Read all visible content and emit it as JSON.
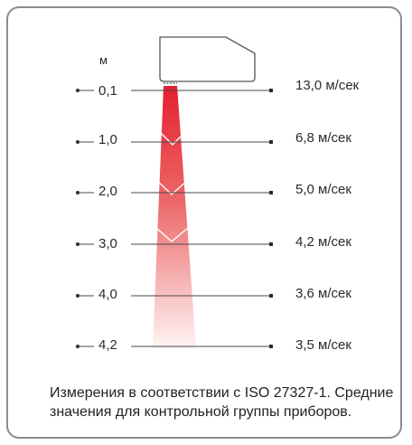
{
  "unit_label": "м",
  "rows": [
    {
      "distance": "0,1",
      "velocity": "13,0 м/сек"
    },
    {
      "distance": "1,0",
      "velocity": "6,8 м/сек"
    },
    {
      "distance": "2,0",
      "velocity": "5,0 м/сек"
    },
    {
      "distance": "3,0",
      "velocity": "4,2 м/сек"
    },
    {
      "distance": "4,0",
      "velocity": "3,6 м/сек"
    },
    {
      "distance": "4,2",
      "velocity": "3,5 м/сек"
    }
  ],
  "caption": "Измерения в соответствии с ISO 27327-1. Средние значения для контрольной группы приборов.",
  "colors": {
    "stream_top": "#e4202e",
    "stream_bottom": "#fff4f4",
    "border": "#8c8c8c",
    "lines": "#4a4a4a"
  }
}
